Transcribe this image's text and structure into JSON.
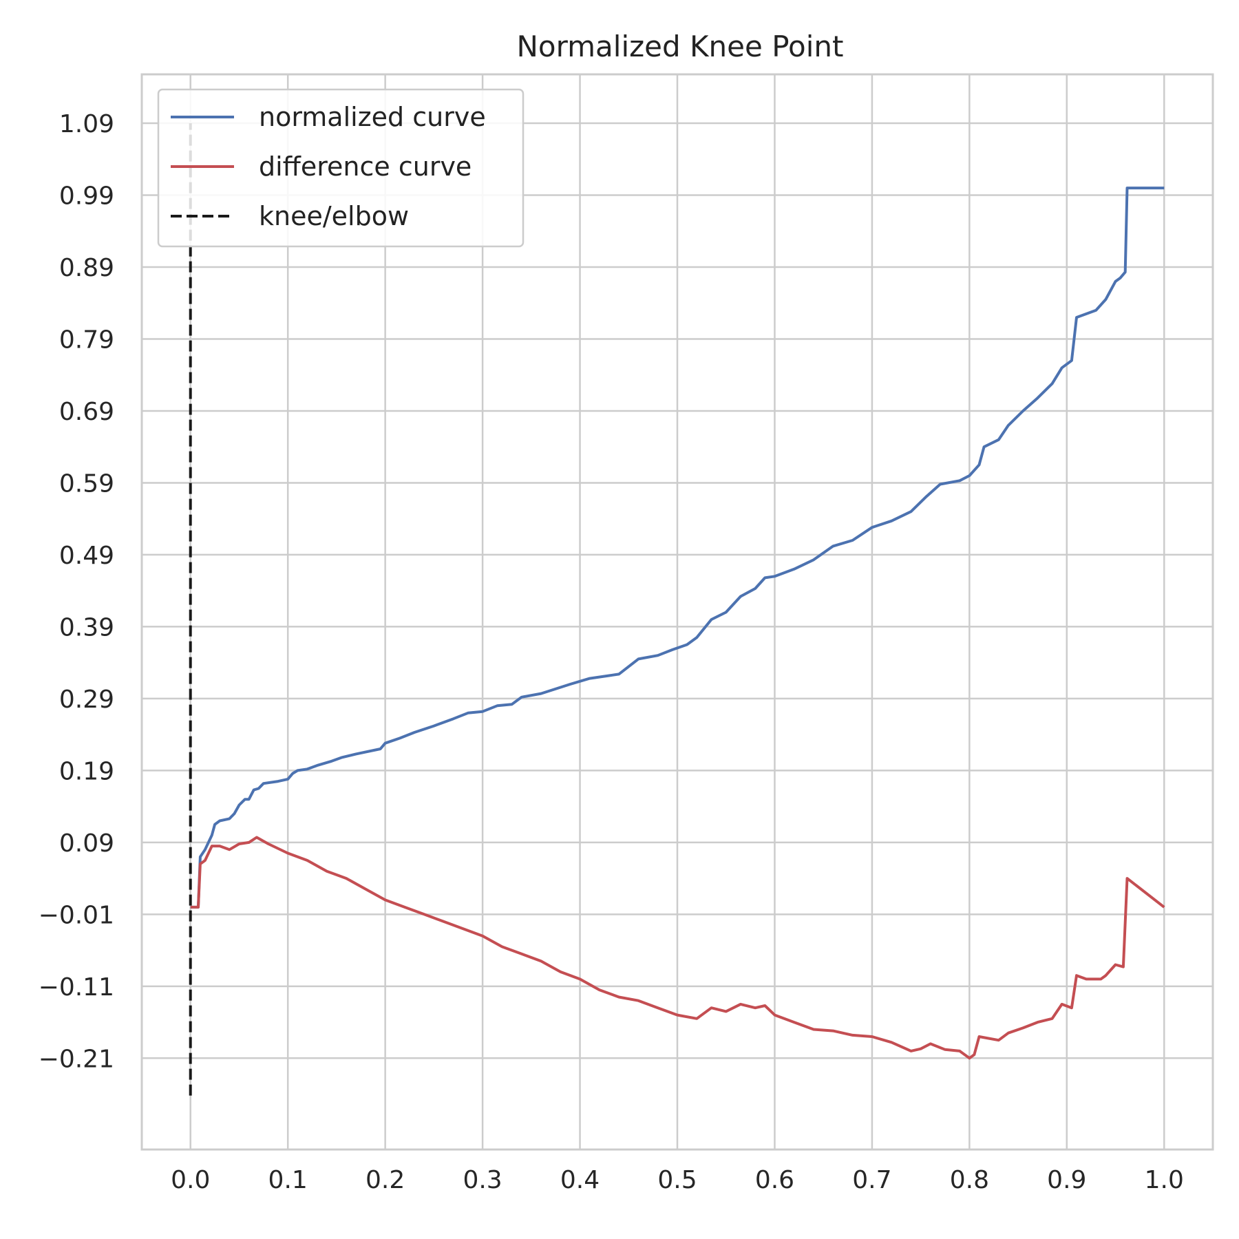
{
  "chart_data": {
    "type": "line",
    "title": "Normalized Knee Point",
    "xlabel": "",
    "ylabel": "",
    "xlim": [
      -0.05,
      1.05
    ],
    "ylim": [
      -0.337,
      1.158
    ],
    "x_ticks": [
      0.0,
      0.1,
      0.2,
      0.3,
      0.4,
      0.5,
      0.6,
      0.7,
      0.8,
      0.9,
      1.0
    ],
    "x_tick_labels": [
      "0.0",
      "0.1",
      "0.2",
      "0.3",
      "0.4",
      "0.5",
      "0.6",
      "0.7",
      "0.8",
      "0.9",
      "1.0"
    ],
    "y_ticks": [
      -0.21,
      -0.11,
      -0.01,
      0.09,
      0.19,
      0.29,
      0.39,
      0.49,
      0.59,
      0.69,
      0.79,
      0.89,
      0.99,
      1.09
    ],
    "y_tick_labels": [
      "−0.21",
      "−0.11",
      "−0.01",
      "0.09",
      "0.19",
      "0.29",
      "0.39",
      "0.49",
      "0.59",
      "0.69",
      "0.79",
      "0.89",
      "0.99",
      "1.09"
    ],
    "grid": true,
    "legend_position": "top-left",
    "series": [
      {
        "name": "normalized curve",
        "color": "#4c72b0",
        "style": "solid",
        "points": [
          [
            0.0,
            0.0
          ],
          [
            0.008,
            0.0
          ],
          [
            0.01,
            0.07
          ],
          [
            0.015,
            0.08
          ],
          [
            0.022,
            0.1
          ],
          [
            0.025,
            0.115
          ],
          [
            0.03,
            0.12
          ],
          [
            0.04,
            0.123
          ],
          [
            0.045,
            0.13
          ],
          [
            0.05,
            0.142
          ],
          [
            0.056,
            0.15
          ],
          [
            0.06,
            0.15
          ],
          [
            0.065,
            0.163
          ],
          [
            0.07,
            0.165
          ],
          [
            0.075,
            0.172
          ],
          [
            0.09,
            0.175
          ],
          [
            0.1,
            0.178
          ],
          [
            0.105,
            0.186
          ],
          [
            0.11,
            0.19
          ],
          [
            0.12,
            0.192
          ],
          [
            0.13,
            0.197
          ],
          [
            0.145,
            0.203
          ],
          [
            0.155,
            0.208
          ],
          [
            0.17,
            0.213
          ],
          [
            0.195,
            0.22
          ],
          [
            0.2,
            0.228
          ],
          [
            0.215,
            0.235
          ],
          [
            0.23,
            0.243
          ],
          [
            0.25,
            0.252
          ],
          [
            0.27,
            0.262
          ],
          [
            0.285,
            0.27
          ],
          [
            0.3,
            0.272
          ],
          [
            0.315,
            0.28
          ],
          [
            0.33,
            0.282
          ],
          [
            0.34,
            0.292
          ],
          [
            0.36,
            0.297
          ],
          [
            0.39,
            0.31
          ],
          [
            0.41,
            0.318
          ],
          [
            0.43,
            0.322
          ],
          [
            0.44,
            0.324
          ],
          [
            0.46,
            0.345
          ],
          [
            0.48,
            0.35
          ],
          [
            0.495,
            0.358
          ],
          [
            0.51,
            0.365
          ],
          [
            0.52,
            0.375
          ],
          [
            0.535,
            0.4
          ],
          [
            0.55,
            0.41
          ],
          [
            0.565,
            0.432
          ],
          [
            0.58,
            0.443
          ],
          [
            0.59,
            0.458
          ],
          [
            0.6,
            0.46
          ],
          [
            0.62,
            0.47
          ],
          [
            0.64,
            0.483
          ],
          [
            0.66,
            0.502
          ],
          [
            0.68,
            0.51
          ],
          [
            0.7,
            0.528
          ],
          [
            0.72,
            0.537
          ],
          [
            0.74,
            0.55
          ],
          [
            0.755,
            0.57
          ],
          [
            0.77,
            0.588
          ],
          [
            0.79,
            0.593
          ],
          [
            0.8,
            0.6
          ],
          [
            0.81,
            0.615
          ],
          [
            0.815,
            0.64
          ],
          [
            0.83,
            0.65
          ],
          [
            0.84,
            0.67
          ],
          [
            0.855,
            0.69
          ],
          [
            0.87,
            0.708
          ],
          [
            0.885,
            0.728
          ],
          [
            0.895,
            0.75
          ],
          [
            0.905,
            0.76
          ],
          [
            0.91,
            0.82
          ],
          [
            0.93,
            0.83
          ],
          [
            0.94,
            0.845
          ],
          [
            0.95,
            0.87
          ],
          [
            0.955,
            0.875
          ],
          [
            0.96,
            0.883
          ],
          [
            0.962,
            1.0
          ],
          [
            1.0,
            1.0
          ]
        ]
      },
      {
        "name": "difference curve",
        "color": "#c44e52",
        "style": "solid",
        "points": [
          [
            0.0,
            0.0
          ],
          [
            0.008,
            0.0
          ],
          [
            0.01,
            0.06
          ],
          [
            0.015,
            0.065
          ],
          [
            0.022,
            0.085
          ],
          [
            0.03,
            0.085
          ],
          [
            0.04,
            0.08
          ],
          [
            0.05,
            0.088
          ],
          [
            0.06,
            0.09
          ],
          [
            0.068,
            0.097
          ],
          [
            0.08,
            0.088
          ],
          [
            0.1,
            0.075
          ],
          [
            0.12,
            0.065
          ],
          [
            0.14,
            0.05
          ],
          [
            0.16,
            0.04
          ],
          [
            0.18,
            0.025
          ],
          [
            0.2,
            0.01
          ],
          [
            0.22,
            0.0
          ],
          [
            0.24,
            -0.01
          ],
          [
            0.26,
            -0.02
          ],
          [
            0.28,
            -0.03
          ],
          [
            0.3,
            -0.04
          ],
          [
            0.32,
            -0.055
          ],
          [
            0.34,
            -0.065
          ],
          [
            0.36,
            -0.075
          ],
          [
            0.38,
            -0.09
          ],
          [
            0.4,
            -0.1
          ],
          [
            0.42,
            -0.115
          ],
          [
            0.44,
            -0.125
          ],
          [
            0.46,
            -0.13
          ],
          [
            0.48,
            -0.14
          ],
          [
            0.5,
            -0.15
          ],
          [
            0.52,
            -0.155
          ],
          [
            0.535,
            -0.14
          ],
          [
            0.55,
            -0.145
          ],
          [
            0.565,
            -0.135
          ],
          [
            0.58,
            -0.14
          ],
          [
            0.59,
            -0.137
          ],
          [
            0.6,
            -0.15
          ],
          [
            0.62,
            -0.16
          ],
          [
            0.64,
            -0.17
          ],
          [
            0.66,
            -0.172
          ],
          [
            0.68,
            -0.178
          ],
          [
            0.7,
            -0.18
          ],
          [
            0.72,
            -0.188
          ],
          [
            0.74,
            -0.2
          ],
          [
            0.75,
            -0.197
          ],
          [
            0.76,
            -0.19
          ],
          [
            0.775,
            -0.198
          ],
          [
            0.79,
            -0.2
          ],
          [
            0.8,
            -0.21
          ],
          [
            0.805,
            -0.205
          ],
          [
            0.81,
            -0.18
          ],
          [
            0.83,
            -0.185
          ],
          [
            0.84,
            -0.175
          ],
          [
            0.855,
            -0.168
          ],
          [
            0.87,
            -0.16
          ],
          [
            0.885,
            -0.155
          ],
          [
            0.895,
            -0.135
          ],
          [
            0.905,
            -0.14
          ],
          [
            0.91,
            -0.095
          ],
          [
            0.92,
            -0.1
          ],
          [
            0.935,
            -0.1
          ],
          [
            0.94,
            -0.095
          ],
          [
            0.95,
            -0.08
          ],
          [
            0.958,
            -0.083
          ],
          [
            0.962,
            0.04
          ],
          [
            1.0,
            0.0
          ]
        ]
      },
      {
        "name": "knee/elbow",
        "color": "#1a1a1a",
        "style": "dashed",
        "points": [
          [
            0.0,
            -0.262
          ],
          [
            0.0,
            1.09
          ]
        ]
      }
    ]
  }
}
